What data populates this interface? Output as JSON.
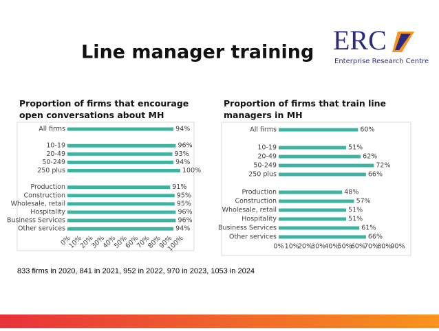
{
  "title": "Line manager training",
  "logo": {
    "name": "ERC",
    "subtitle": "Enterprise Research Centre"
  },
  "footnote": "833 firms in 2020, 841 in 2021, 952 in 2022, 970 in 2023, 1053 in 2024",
  "chart_data": [
    {
      "type": "bar",
      "orientation": "horizontal",
      "title": "Proportion of firms that encourage open conversations about MH",
      "categories": [
        "All firms",
        null,
        "10-19",
        "20-49",
        "50-249",
        "250 plus",
        null,
        "Production",
        "Construction",
        "Wholesale, retail",
        "Hospitality",
        "Business Services",
        "Other services"
      ],
      "values": [
        94,
        null,
        96,
        93,
        94,
        100,
        null,
        91,
        95,
        95,
        96,
        96,
        94
      ],
      "value_labels": [
        "94%",
        null,
        "96%",
        "93%",
        "94%",
        "100%",
        null,
        "91%",
        "95%",
        "95%",
        "96%",
        "96%",
        "94%"
      ],
      "color": "#3fb3a2",
      "grid": false,
      "xlim": [
        0,
        100
      ],
      "xticks": [
        {
          "value": 0,
          "label": "0%"
        },
        {
          "value": 10,
          "label": "10%"
        },
        {
          "value": 20,
          "label": "20%"
        },
        {
          "value": 30,
          "label": "30%"
        },
        {
          "value": 40,
          "label": "40%"
        },
        {
          "value": 50,
          "label": "50%"
        },
        {
          "value": 60,
          "label": "60%"
        },
        {
          "value": 70,
          "label": "70%"
        },
        {
          "value": 80,
          "label": "80%"
        },
        {
          "value": 90,
          "label": "90%"
        },
        {
          "value": 100,
          "label": "100%"
        }
      ]
    },
    {
      "type": "bar",
      "orientation": "horizontal",
      "title": "Proportion of firms that train line managers in MH",
      "categories": [
        "All firms",
        null,
        "10-19",
        "20-49",
        "50-249",
        "250 plus",
        null,
        "Production",
        "Construction",
        "Wholesale, retail",
        "Hospitality",
        "Business Services",
        "Other services"
      ],
      "values": [
        60,
        null,
        51,
        62,
        72,
        66,
        null,
        48,
        57,
        51,
        51,
        61,
        66
      ],
      "value_labels": [
        "60%",
        null,
        "51%",
        "62%",
        "72%",
        "66%",
        null,
        "48%",
        "57%",
        "51%",
        "51%",
        "61%",
        "66%"
      ],
      "color": "#3fb3a2",
      "grid": false,
      "xlim": [
        0,
        90
      ],
      "xticks": [
        {
          "value": 0,
          "label": "0%"
        },
        {
          "value": 10,
          "label": "10%"
        },
        {
          "value": 20,
          "label": "20%"
        },
        {
          "value": 30,
          "label": "30%"
        },
        {
          "value": 40,
          "label": "40%"
        },
        {
          "value": 50,
          "label": "50%"
        },
        {
          "value": 60,
          "label": "60%"
        },
        {
          "value": 70,
          "label": "70%"
        },
        {
          "value": 80,
          "label": "80%"
        },
        {
          "value": 90,
          "label": "90%"
        }
      ]
    }
  ]
}
